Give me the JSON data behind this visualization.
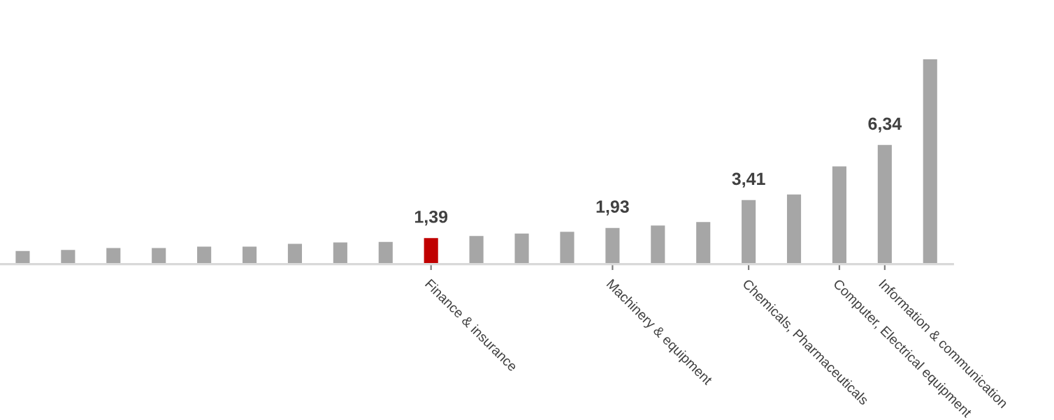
{
  "chart_data": {
    "type": "bar",
    "categories": [
      null,
      null,
      null,
      null,
      null,
      null,
      null,
      null,
      null,
      "Finance & insurance",
      null,
      null,
      null,
      "Machinery & equipment",
      null,
      null,
      "Chemicals, Pharmaceuticals",
      null,
      "Computer, Electrical equipment",
      "Information & communication",
      null
    ],
    "values": [
      0.7,
      0.76,
      0.86,
      0.86,
      0.93,
      0.93,
      1.08,
      1.16,
      1.18,
      1.39,
      1.5,
      1.63,
      1.72,
      1.93,
      2.06,
      2.24,
      3.41,
      3.71,
      5.2,
      6.34,
      10.9
    ],
    "colors": [
      "#a6a6a6",
      "#a6a6a6",
      "#a6a6a6",
      "#a6a6a6",
      "#a6a6a6",
      "#a6a6a6",
      "#a6a6a6",
      "#a6a6a6",
      "#a6a6a6",
      "#c00000",
      "#a6a6a6",
      "#a6a6a6",
      "#a6a6a6",
      "#a6a6a6",
      "#a6a6a6",
      "#a6a6a6",
      "#a6a6a6",
      "#a6a6a6",
      "#a6a6a6",
      "#a6a6a6",
      "#a6a6a6"
    ],
    "value_labels": [
      null,
      null,
      null,
      null,
      null,
      null,
      null,
      null,
      null,
      "1,39",
      null,
      null,
      null,
      "1,93",
      null,
      null,
      "3,41",
      null,
      null,
      "6,34",
      null
    ],
    "tick_labels": "x",
    "grid": false,
    "legend": false
  }
}
